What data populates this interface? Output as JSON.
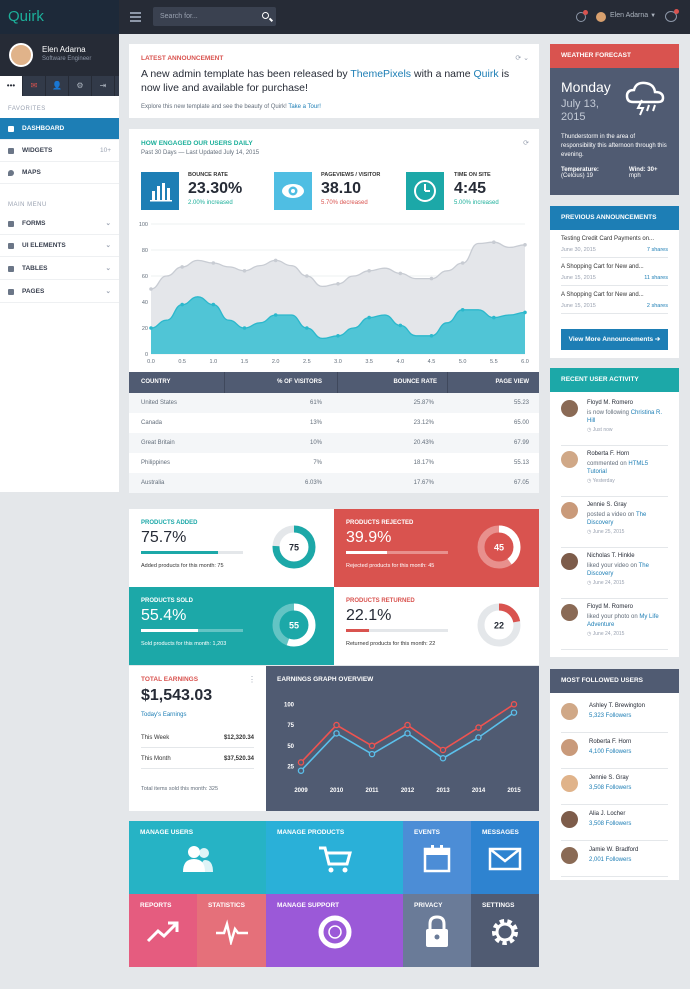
{
  "app": {
    "logo": "Quirk"
  },
  "topbar": {
    "search_placeholder": "Search for...",
    "user_name": "Elen Adarna"
  },
  "sidebar": {
    "user_name": "Elen Adarna",
    "user_role": "Software Engineer",
    "tabs": [
      "•••",
      "✉",
      "👤",
      "⚙",
      "⇥"
    ],
    "favorites_label": "FAVORITES",
    "main_menu_label": "MAIN MENU",
    "favorites": [
      {
        "label": "DASHBOARD",
        "badge": "",
        "active": true
      },
      {
        "label": "WIDGETS",
        "badge": "10+",
        "active": false
      },
      {
        "label": "MAPS",
        "badge": "",
        "active": false
      }
    ],
    "menu": [
      {
        "label": "FORMS"
      },
      {
        "label": "UI ELEMENTS"
      },
      {
        "label": "TABLES"
      },
      {
        "label": "PAGES"
      }
    ]
  },
  "announcement": {
    "title": "LATEST ANNOUNCEMENT",
    "text_1": "A new admin template has been released by ",
    "link_1": "ThemePixels",
    "text_2": " with a name ",
    "link_2": "Quirk",
    "text_3": " is now live and available for purchase!",
    "sub": "Explore this new template and see the beauty of Quirk! ",
    "sub_link": "Take a Tour!"
  },
  "engagement": {
    "title": "HOW ENGAGED OUR USERS DAILY",
    "subtitle": "Past 30 Days — Last Updated July 14, 2015",
    "stats": [
      {
        "label": "BOUNCE RATE",
        "value": "23.30%",
        "change": "2.00% increased",
        "color": "#1d7eb5",
        "change_color": "#1caf9a"
      },
      {
        "label": "PAGEVIEWS / VISITOR",
        "value": "38.10",
        "change": "5.70% decreased",
        "color": "#4fbee3",
        "change_color": "#d9534f"
      },
      {
        "label": "TIME ON SITE",
        "value": "4:45",
        "change": "5.00% increased",
        "color": "#1ca8a8",
        "change_color": "#1caf9a"
      }
    ]
  },
  "chart_data": [
    {
      "type": "area",
      "x": [
        0,
        0.25,
        0.5,
        0.75,
        1.0,
        1.25,
        1.5,
        1.75,
        2.0,
        2.25,
        2.5,
        2.75,
        3.0,
        3.25,
        3.5,
        3.75,
        4.0,
        4.25,
        4.5,
        4.75,
        5.0,
        5.25,
        5.5,
        5.75,
        6.0
      ],
      "series": [
        {
          "color": "#c8ccd3",
          "values": [
            50,
            60,
            67,
            72,
            70,
            67,
            64,
            68,
            72,
            68,
            60,
            52,
            54,
            60,
            64,
            66,
            62,
            58,
            58,
            64,
            70,
            85,
            86,
            82,
            84
          ]
        },
        {
          "color": "#2cb8cc",
          "values": [
            20,
            26,
            38,
            44,
            38,
            26,
            20,
            24,
            30,
            30,
            20,
            12,
            14,
            20,
            28,
            30,
            22,
            14,
            14,
            24,
            34,
            34,
            28,
            30,
            32
          ]
        }
      ],
      "xticks": [
        "0.0",
        "0.5",
        "1.0",
        "1.5",
        "2.0",
        "2.5",
        "3.0",
        "3.5",
        "4.0",
        "4.5",
        "5.0",
        "5.5",
        "6.0"
      ],
      "yticks": [
        "0",
        "20",
        "40",
        "60",
        "80",
        "100"
      ],
      "xlim": [
        0,
        6
      ],
      "ylim": [
        0,
        100
      ]
    },
    {
      "type": "line",
      "title": "EARNINGS GRAPH OVERVIEW",
      "categories": [
        "2009",
        "2010",
        "2011",
        "2012",
        "2013",
        "2014",
        "2015"
      ],
      "series": [
        {
          "color": "#ef5350",
          "values": [
            30,
            75,
            50,
            75,
            45,
            72,
            100
          ]
        },
        {
          "color": "#5bc0eb",
          "values": [
            20,
            65,
            40,
            65,
            35,
            60,
            90
          ]
        }
      ],
      "yticks": [
        "25",
        "50",
        "75",
        "100"
      ],
      "ylim": [
        10,
        110
      ]
    }
  ],
  "table": {
    "headers": [
      "COUNTRY",
      "% OF VISITORS",
      "BOUNCE RATE",
      "PAGE VIEW"
    ],
    "rows": [
      [
        "United States",
        "61%",
        "25.87%",
        "55.23"
      ],
      [
        "Canada",
        "13%",
        "23.12%",
        "65.00"
      ],
      [
        "Great Britain",
        "10%",
        "20.43%",
        "67.99"
      ],
      [
        "Philippines",
        "7%",
        "18.17%",
        "55.13"
      ],
      [
        "Australia",
        "6.03%",
        "17.67%",
        "67.05"
      ]
    ]
  },
  "kpis": [
    {
      "title": "PRODUCTS ADDED",
      "value": "75.7%",
      "footer": "Added products for this month: 75",
      "donut": "75",
      "pct": 0.757
    },
    {
      "title": "PRODUCTS REJECTED",
      "value": "39.9%",
      "footer": "Rejected products for this month: 45",
      "donut": "45",
      "pct": 0.399
    },
    {
      "title": "PRODUCTS SOLD",
      "value": "55.4%",
      "footer": "Sold products for this month: 1,203",
      "donut": "55",
      "pct": 0.554
    },
    {
      "title": "PRODUCTS RETURNED",
      "value": "22.1%",
      "footer": "Returned products for this month: 22",
      "donut": "22",
      "pct": 0.221
    }
  ],
  "earnings": {
    "title": "TOTAL EARNINGS",
    "value": "$1,543.03",
    "label": "Today's Earnings",
    "this_week_label": "This Week",
    "this_week": "$12,320.34",
    "this_month_label": "This Month",
    "this_month": "$37,520.34",
    "footer": "Total items sold this month: 325"
  },
  "tiles": [
    {
      "label": "MANAGE USERS",
      "icon": "users-icon"
    },
    {
      "label": "MANAGE PRODUCTS",
      "icon": "cart-icon"
    },
    {
      "label": "EVENTS",
      "icon": "calendar-icon"
    },
    {
      "label": "MESSAGES",
      "icon": "envelope-icon"
    },
    {
      "label": "REPORTS",
      "icon": "trend-icon"
    },
    {
      "label": "STATISTICS",
      "icon": "pulse-icon"
    },
    {
      "label": "MANAGE SUPPORT",
      "icon": "lifebuoy-icon"
    },
    {
      "label": "PRIVACY",
      "icon": "lock-icon"
    },
    {
      "label": "SETTINGS",
      "icon": "gear-icon"
    }
  ],
  "weather": {
    "title": "WEATHER FORECAST",
    "day": "Monday",
    "date_1": "July 13,",
    "date_2": "2015",
    "desc": "Thunderstorm in the area of responsibility this afternoon through this evening.",
    "temp_label": "Temperature:",
    "temp_value": "(Celcius) 19",
    "wind_label": "Wind: 30+",
    "wind_value": "mph"
  },
  "previous": {
    "title": "PREVIOUS ANNOUNCEMENTS",
    "items": [
      {
        "title": "Testing Credit Card Payments on...",
        "date": "June 30, 2015",
        "shares": "7 shares"
      },
      {
        "title": "A Shopping Cart for New and...",
        "date": "June 15, 2015",
        "shares": "11 shares"
      },
      {
        "title": "A Shopping Cart for New and...",
        "date": "June 15, 2015",
        "shares": "2 shares"
      }
    ],
    "button": "View More Announcements ➔"
  },
  "activity": {
    "title": "RECENT USER ACTIVITY",
    "items": [
      {
        "name": "Floyd M. Romero",
        "action": "is now following ",
        "target": "Christina R. Hill",
        "date": "Just now"
      },
      {
        "name": "Roberta F. Horn",
        "action": "commented on ",
        "target": "HTML5 Tutorial",
        "date": "Yesterday"
      },
      {
        "name": "Jennie S. Gray",
        "action": "posted a video on ",
        "target": "The Discovery",
        "date": "June 25, 2015"
      },
      {
        "name": "Nicholas T. Hinkle",
        "action": "liked your video on ",
        "target": "The Discovery",
        "date": "June 24, 2015"
      },
      {
        "name": "Floyd M. Romero",
        "action": "liked your photo on ",
        "target": "My Life Adventure",
        "date": "June 24, 2015"
      }
    ]
  },
  "followed": {
    "title": "MOST FOLLOWED USERS",
    "items": [
      {
        "name": "Ashley T. Brewington",
        "followers": "5,323 Followers"
      },
      {
        "name": "Roberta F. Horn",
        "followers": "4,100 Followers"
      },
      {
        "name": "Jennie S. Gray",
        "followers": "3,508 Followers"
      },
      {
        "name": "Alia J. Locher",
        "followers": "3,508 Followers"
      },
      {
        "name": "Jamie W. Bradford",
        "followers": "2,001 Followers"
      }
    ]
  }
}
